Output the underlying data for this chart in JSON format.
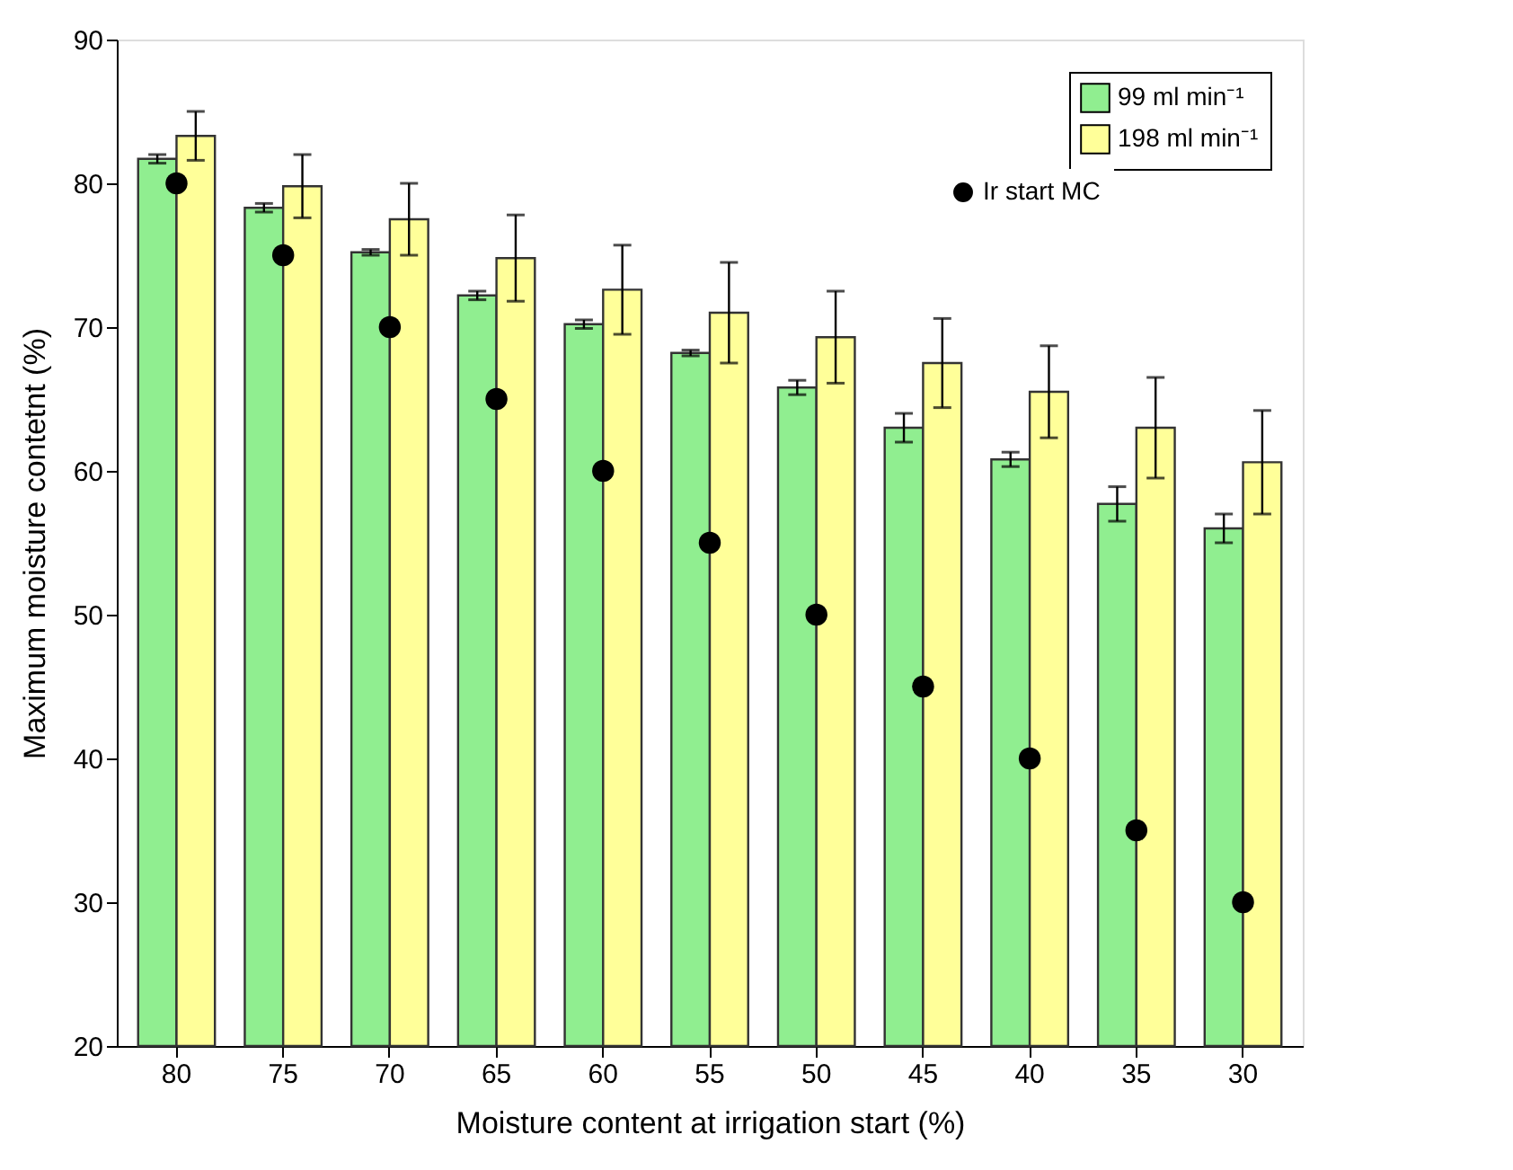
{
  "chart_data": {
    "type": "bar",
    "xlabel": "Moisture content at irrigation start (%)",
    "ylabel": "Maximum moisture contetnt (%)",
    "categories": [
      "80",
      "75",
      "70",
      "65",
      "60",
      "55",
      "50",
      "45",
      "40",
      "35",
      "30"
    ],
    "series": [
      {
        "name": "99 ml min⁻¹",
        "color": "#90ee90",
        "values": [
          81.7,
          78.3,
          75.2,
          72.2,
          70.2,
          68.2,
          65.8,
          63.0,
          60.8,
          57.7,
          56.0
        ],
        "errors": [
          0.3,
          0.3,
          0.2,
          0.3,
          0.3,
          0.2,
          0.5,
          1.0,
          0.5,
          1.2,
          1.0
        ]
      },
      {
        "name": "198 ml min⁻¹",
        "color": "#ffff99",
        "values": [
          83.3,
          79.8,
          77.5,
          74.8,
          72.6,
          71.0,
          69.3,
          67.5,
          65.5,
          63.0,
          60.6
        ],
        "errors": [
          1.7,
          2.2,
          2.5,
          3.0,
          3.1,
          3.5,
          3.2,
          3.1,
          3.2,
          3.5,
          3.6
        ]
      },
      {
        "name": "Ir start MC",
        "type": "scatter",
        "color": "#000000",
        "x": [
          "80",
          "75",
          "70",
          "65",
          "60",
          "55",
          "50",
          "45",
          "40",
          "35",
          "30"
        ],
        "values": [
          80,
          75,
          70,
          65,
          60,
          55,
          50,
          45,
          40,
          35,
          30
        ]
      }
    ],
    "ylim": [
      20,
      90
    ],
    "yticks": [
      20,
      30,
      40,
      50,
      60,
      70,
      80,
      90
    ],
    "grid": false,
    "legend": "top right",
    "marker": "circle"
  }
}
